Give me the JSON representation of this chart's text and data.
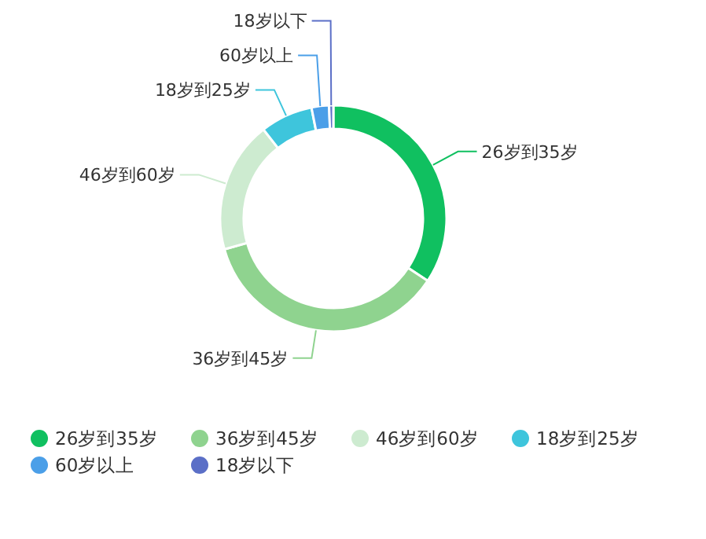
{
  "chart_data": {
    "type": "donut",
    "categories": [
      "26岁到35岁",
      "36岁到45岁",
      "46岁到60岁",
      "18岁到25岁",
      "60岁以上",
      "18岁以下"
    ],
    "values": [
      34.3,
      36.3,
      18.8,
      7.5,
      2.5,
      0.6
    ],
    "colors": [
      "#10c060",
      "#8fd38f",
      "#cdebd0",
      "#3ec5dc",
      "#4b9fe8",
      "#5b6fc7"
    ],
    "legend": "bottom"
  }
}
